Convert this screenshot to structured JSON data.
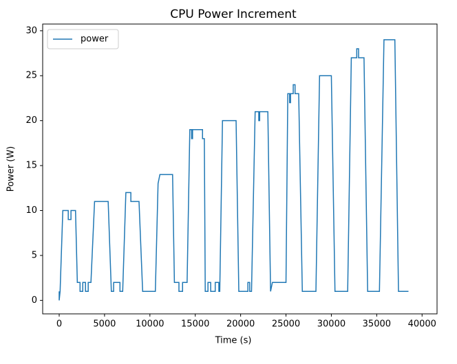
{
  "chart_data": {
    "type": "line",
    "title": "CPU Power Increment",
    "x_label": "Time (s)",
    "y_label": "Power (W)",
    "x": [
      0,
      0,
      100,
      400,
      1000,
      1000,
      1300,
      1300,
      1800,
      2000,
      2300,
      2300,
      2600,
      2600,
      2900,
      2900,
      3200,
      3200,
      3500,
      3900,
      5400,
      5750,
      6000,
      6000,
      6700,
      6700,
      7000,
      7350,
      7900,
      7900,
      8800,
      9200,
      10600,
      10900,
      11100,
      12500,
      12700,
      13200,
      13200,
      13600,
      13600,
      14100,
      14400,
      14600,
      14600,
      14700,
      14700,
      15800,
      15800,
      16000,
      16100,
      16400,
      16400,
      16700,
      16700,
      17200,
      17200,
      17600,
      17600,
      17700,
      18000,
      19500,
      19800,
      20800,
      20800,
      21000,
      21000,
      21200,
      21600,
      22000,
      22000,
      22100,
      22100,
      23000,
      23300,
      23500,
      25000,
      25200,
      25400,
      25400,
      25500,
      25500,
      25800,
      25800,
      26000,
      26000,
      26400,
      26800,
      28300,
      28700,
      30000,
      30400,
      31800,
      32200,
      32800,
      32800,
      33000,
      33000,
      33600,
      34000,
      35300,
      35800,
      37000,
      37400,
      38500
    ],
    "series": [
      {
        "name": "power",
        "color": "#1f77b4",
        "values": [
          1,
          0,
          1,
          10,
          10,
          9,
          9,
          10,
          10,
          2,
          2,
          1,
          1,
          2,
          2,
          1,
          1,
          2,
          2,
          11,
          11,
          1,
          1,
          2,
          2,
          1,
          1,
          12,
          12,
          11,
          11,
          1,
          1,
          13,
          14,
          14,
          2,
          2,
          1,
          1,
          2,
          2,
          19,
          19,
          18,
          18,
          19,
          19,
          18,
          18,
          1,
          1,
          2,
          2,
          1,
          1,
          2,
          2,
          1,
          1,
          20,
          20,
          1,
          1,
          2,
          2,
          1,
          1,
          21,
          21,
          20,
          20,
          21,
          21,
          1,
          2,
          2,
          23,
          23,
          22,
          22,
          23,
          23,
          24,
          24,
          23,
          23,
          1,
          1,
          25,
          25,
          1,
          1,
          27,
          27,
          28,
          28,
          27,
          27,
          1,
          1,
          29,
          29,
          1,
          1
        ]
      }
    ],
    "xlim": [
      -1820,
      41650
    ],
    "ylim": [
      -1.5,
      30.75
    ],
    "xticks": [
      0,
      5000,
      10000,
      15000,
      20000,
      25000,
      30000,
      35000,
      40000
    ],
    "yticks": [
      0,
      5,
      10,
      15,
      20,
      25,
      30
    ],
    "legend": "upper left"
  }
}
